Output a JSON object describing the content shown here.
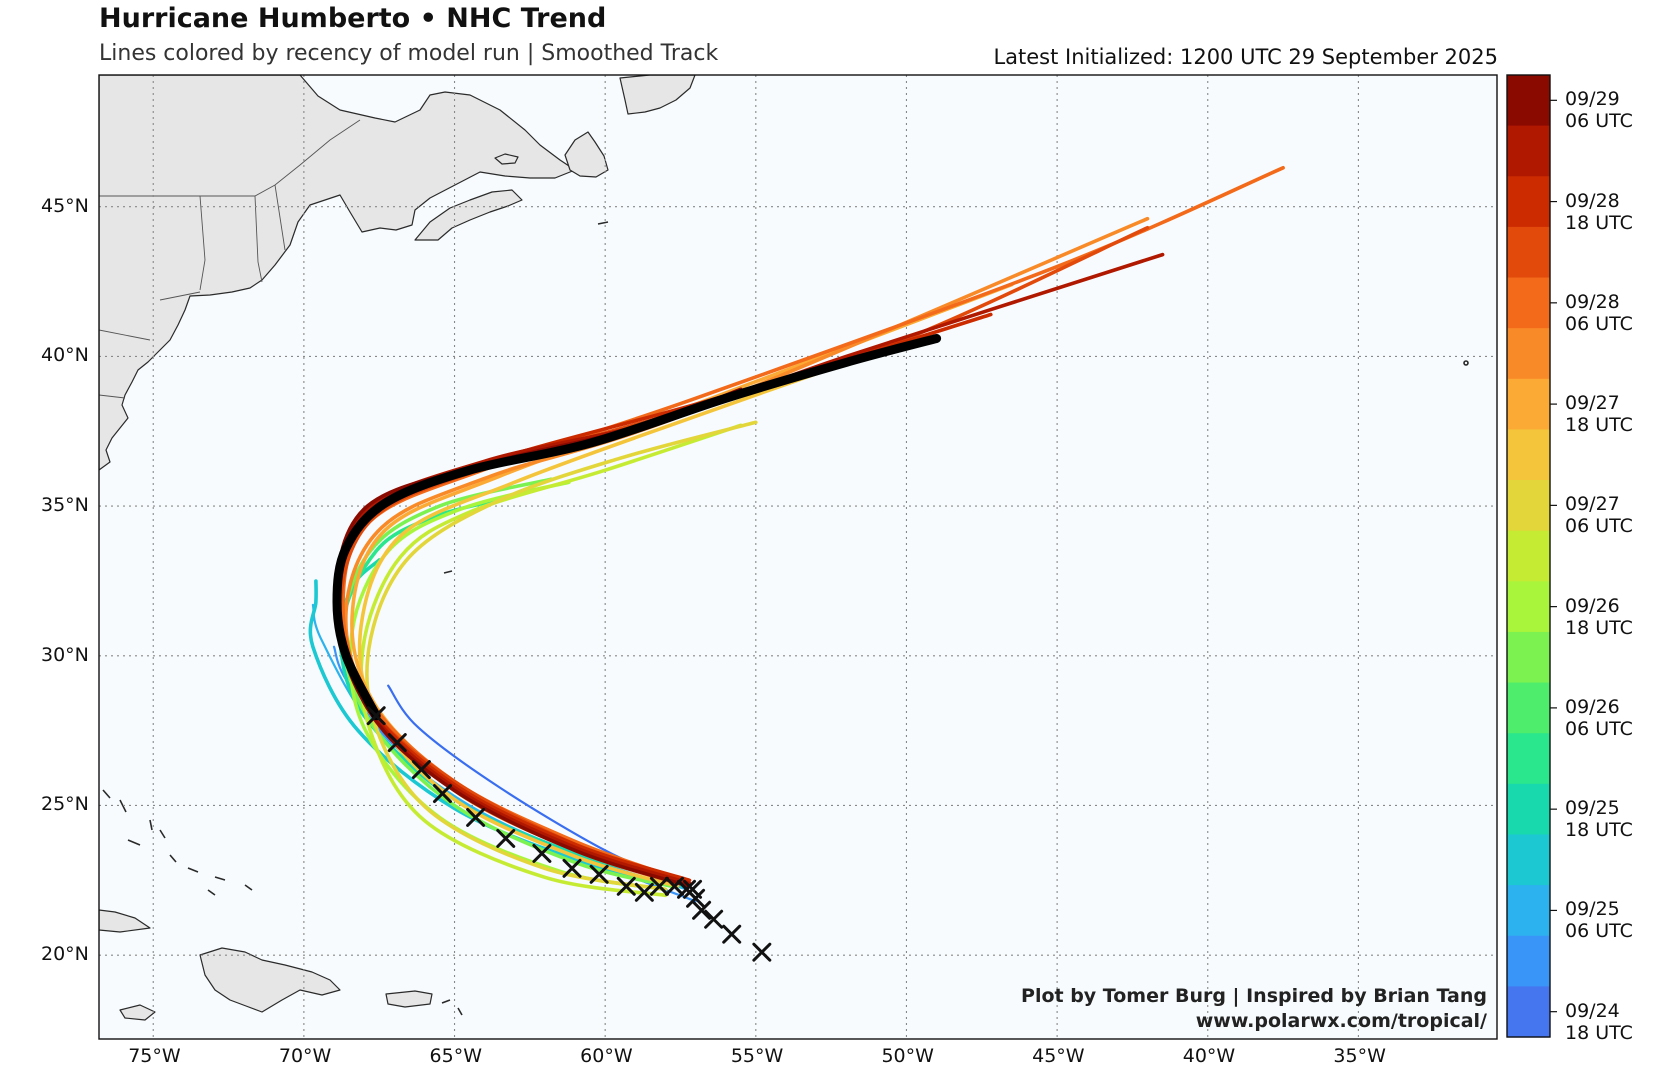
{
  "header": {
    "title": "Hurricane Humberto • NHC Trend",
    "subtitle": "Lines colored by recency of model run | Smoothed Track",
    "latest": "Latest Initialized: 1200 UTC 29 September 2025"
  },
  "credit": {
    "line1": "Plot by Tomer Burg | Inspired by Brian Tang",
    "line2": "www.polarwx.com/tropical/"
  },
  "map": {
    "lon_range": [
      -76.8,
      -30.4
    ],
    "lat_range": [
      17.2,
      49.4
    ],
    "lon_ticks": [
      {
        "value": -75,
        "label": "75°W"
      },
      {
        "value": -70,
        "label": "70°W"
      },
      {
        "value": -65,
        "label": "65°W"
      },
      {
        "value": -60,
        "label": "60°W"
      },
      {
        "value": -55,
        "label": "55°W"
      },
      {
        "value": -50,
        "label": "50°W"
      },
      {
        "value": -45,
        "label": "45°W"
      },
      {
        "value": -40,
        "label": "40°W"
      },
      {
        "value": -35,
        "label": "35°W"
      }
    ],
    "lat_ticks": [
      {
        "value": 20,
        "label": "20°N"
      },
      {
        "value": 25,
        "label": "25°N"
      },
      {
        "value": 30,
        "label": "30°N"
      },
      {
        "value": 35,
        "label": "35°N"
      },
      {
        "value": 40,
        "label": "40°N"
      },
      {
        "value": 45,
        "label": "45°N"
      }
    ],
    "ocean_color": "#f7fbfd",
    "land_color": "#e6e6e6",
    "latest_track_color": "#000000"
  },
  "colorbar": {
    "colors": [
      "#8b0a00",
      "#b11800",
      "#cc2b00",
      "#e24a0c",
      "#f26a1a",
      "#f98a28",
      "#fbab35",
      "#f4c53b",
      "#e2d63a",
      "#c6eb33",
      "#a9f53c",
      "#7cf250",
      "#4eee6c",
      "#2ae68c",
      "#18d9ae",
      "#1cc8d2",
      "#2cb2ef",
      "#3a95f8",
      "#4576f0"
    ],
    "labels": [
      "09/29\n06 UTC",
      "09/28\n18 UTC",
      "09/28\n06 UTC",
      "09/27\n18 UTC",
      "09/27\n06 UTC",
      "09/26\n18 UTC",
      "09/26\n06 UTC",
      "09/25\n18 UTC",
      "09/25\n06 UTC",
      "09/24\n18 UTC"
    ]
  },
  "tracks": [
    {
      "color": "#3a6ef0",
      "points": [
        [
          -57.5,
          22.4
        ],
        [
          -60,
          23.5
        ],
        [
          -63.5,
          25.6
        ],
        [
          -66.2,
          27.6
        ],
        [
          -67.2,
          29.0
        ]
      ]
    },
    {
      "color": "#3a95f8",
      "points": [
        [
          -57.0,
          21.8
        ],
        [
          -60,
          23.0
        ],
        [
          -64,
          25.0
        ],
        [
          -67,
          27.0
        ],
        [
          -68.6,
          29.2
        ],
        [
          -69.0,
          30.3
        ]
      ]
    },
    {
      "color": "#2cb2ef",
      "points": [
        [
          -57.3,
          22.2
        ],
        [
          -60.5,
          23.2
        ],
        [
          -64.5,
          25.0
        ],
        [
          -67.6,
          27.5
        ],
        [
          -69.4,
          30.5
        ],
        [
          -69.7,
          31.7
        ]
      ]
    },
    {
      "color": "#1cc8d2",
      "points": [
        [
          -57.5,
          22.3
        ],
        [
          -61,
          23.2
        ],
        [
          -65,
          24.9
        ],
        [
          -68.2,
          27.5
        ],
        [
          -69.7,
          30.3
        ],
        [
          -69.6,
          31.8
        ],
        [
          -69.6,
          32.5
        ]
      ]
    },
    {
      "color": "#18d9ae",
      "points": [
        [
          -57.6,
          22.5
        ],
        [
          -61,
          23.4
        ],
        [
          -65,
          25.2
        ],
        [
          -68.0,
          28.0
        ],
        [
          -68.8,
          30.5
        ],
        [
          -68.4,
          32.3
        ],
        [
          -67.5,
          33.2
        ]
      ]
    },
    {
      "color": "#2ae68c",
      "points": [
        [
          -57.8,
          22.6
        ],
        [
          -61,
          23.6
        ],
        [
          -64.8,
          25.5
        ],
        [
          -67.8,
          28.2
        ],
        [
          -68.7,
          31.0
        ],
        [
          -67.6,
          33.5
        ],
        [
          -65.8,
          34.6
        ],
        [
          -63.6,
          35.2
        ]
      ]
    },
    {
      "color": "#7cf250",
      "points": [
        [
          -57.8,
          22.3
        ],
        [
          -61,
          23.1
        ],
        [
          -65,
          25.0
        ],
        [
          -67.8,
          27.8
        ],
        [
          -68.7,
          30.8
        ],
        [
          -67.8,
          33.5
        ],
        [
          -65.5,
          35.0
        ],
        [
          -61.8,
          35.9
        ]
      ]
    },
    {
      "color": "#a9f53c",
      "points": [
        [
          -58.0,
          22.2
        ],
        [
          -61.5,
          22.8
        ],
        [
          -65.5,
          24.6
        ],
        [
          -68.0,
          27.6
        ],
        [
          -68.4,
          30.8
        ],
        [
          -67.2,
          33.5
        ],
        [
          -64.8,
          34.9
        ],
        [
          -61.2,
          35.8
        ]
      ]
    },
    {
      "color": "#c6eb33",
      "points": [
        [
          -58.0,
          22.0
        ],
        [
          -62,
          22.6
        ],
        [
          -66,
          24.5
        ],
        [
          -67.8,
          27.5
        ],
        [
          -68.0,
          30.5
        ],
        [
          -66.8,
          33.3
        ],
        [
          -64.5,
          34.8
        ],
        [
          -60.0,
          36.2
        ],
        [
          -55.5,
          37.7
        ]
      ]
    },
    {
      "color": "#e2d63a",
      "points": [
        [
          -58.0,
          22.2
        ],
        [
          -62,
          22.9
        ],
        [
          -65.8,
          24.8
        ],
        [
          -67.6,
          27.6
        ],
        [
          -67.8,
          30.5
        ],
        [
          -66.5,
          33.3
        ],
        [
          -63.5,
          35.2
        ],
        [
          -59.5,
          36.6
        ],
        [
          -55.0,
          37.8
        ]
      ]
    },
    {
      "color": "#f4c53b",
      "points": [
        [
          -57.6,
          22.3
        ],
        [
          -61,
          23.3
        ],
        [
          -65,
          25.2
        ],
        [
          -67.6,
          28.0
        ],
        [
          -68.1,
          31.0
        ],
        [
          -66.8,
          34.0
        ],
        [
          -63.0,
          35.8
        ],
        [
          -57.0,
          38.0
        ],
        [
          -50.5,
          40.3
        ]
      ]
    },
    {
      "color": "#fbab35",
      "points": [
        [
          -57.5,
          22.4
        ],
        [
          -61,
          23.6
        ],
        [
          -64.8,
          25.6
        ],
        [
          -67.6,
          28.3
        ],
        [
          -68.4,
          31.3
        ],
        [
          -67.3,
          34.2
        ],
        [
          -63.5,
          36.0
        ],
        [
          -57.0,
          38.4
        ],
        [
          -46.5,
          42.4
        ]
      ]
    },
    {
      "color": "#f98a28",
      "points": [
        [
          -57.6,
          22.4
        ],
        [
          -61,
          23.5
        ],
        [
          -65,
          25.5
        ],
        [
          -67.8,
          28.4
        ],
        [
          -68.6,
          31.5
        ],
        [
          -67.4,
          34.3
        ],
        [
          -63.8,
          36.0
        ],
        [
          -57.0,
          38.2
        ],
        [
          -42.0,
          44.6
        ]
      ]
    },
    {
      "color": "#f26a1a",
      "points": [
        [
          -57.4,
          22.5
        ],
        [
          -61,
          23.8
        ],
        [
          -65,
          25.8
        ],
        [
          -67.8,
          28.5
        ],
        [
          -68.7,
          31.6
        ],
        [
          -67.8,
          34.5
        ],
        [
          -63.8,
          36.3
        ],
        [
          -57.0,
          38.6
        ],
        [
          -45.0,
          43.0
        ],
        [
          -37.5,
          46.3
        ]
      ]
    },
    {
      "color": "#e24a0c",
      "points": [
        [
          -57.3,
          22.4
        ],
        [
          -61,
          23.7
        ],
        [
          -65,
          25.8
        ],
        [
          -67.9,
          28.4
        ],
        [
          -68.8,
          31.5
        ],
        [
          -67.7,
          34.6
        ],
        [
          -63.6,
          36.4
        ],
        [
          -57.0,
          38.3
        ],
        [
          -50.0,
          40.6
        ],
        [
          -42.0,
          44.3
        ]
      ]
    },
    {
      "color": "#cc2b00",
      "points": [
        [
          -57.2,
          22.5
        ],
        [
          -61,
          23.7
        ],
        [
          -65,
          25.7
        ],
        [
          -67.9,
          28.4
        ],
        [
          -68.9,
          31.6
        ],
        [
          -67.9,
          34.8
        ],
        [
          -63.8,
          36.5
        ],
        [
          -57.0,
          38.4
        ],
        [
          -51.0,
          40.2
        ],
        [
          -47.2,
          41.4
        ]
      ]
    },
    {
      "color": "#b11800",
      "points": [
        [
          -57.2,
          22.4
        ],
        [
          -61,
          23.6
        ],
        [
          -65,
          25.6
        ],
        [
          -67.9,
          28.3
        ],
        [
          -68.9,
          31.6
        ],
        [
          -68.0,
          34.8
        ],
        [
          -64.0,
          36.5
        ],
        [
          -58.0,
          37.9
        ],
        [
          -52.0,
          40.0
        ],
        [
          -41.5,
          43.4
        ]
      ]
    },
    {
      "color": "#8b0a00",
      "points": [
        [
          -57.2,
          22.3
        ],
        [
          -61,
          23.5
        ],
        [
          -65,
          25.5
        ],
        [
          -67.8,
          28.1
        ],
        [
          -68.9,
          31.6
        ],
        [
          -68.0,
          34.9
        ],
        [
          -64.0,
          36.4
        ],
        [
          -59.0,
          37.6
        ],
        [
          -55.5,
          38.9
        ]
      ]
    }
  ],
  "latest_track": [
    [
      -67.6,
      28.0
    ],
    [
      -68.6,
      30.0
    ],
    [
      -68.9,
      31.8
    ],
    [
      -68.6,
      33.6
    ],
    [
      -67.3,
      35.1
    ],
    [
      -64.5,
      36.2
    ],
    [
      -60.5,
      37.1
    ],
    [
      -56.0,
      38.6
    ],
    [
      -52.0,
      39.8
    ],
    [
      -49.0,
      40.6
    ]
  ],
  "past_positions": [
    [
      -54.8,
      20.1
    ],
    [
      -55.8,
      20.7
    ],
    [
      -56.4,
      21.2
    ],
    [
      -56.8,
      21.5
    ],
    [
      -57.0,
      21.9
    ],
    [
      -57.1,
      22.2
    ],
    [
      -57.3,
      22.2
    ],
    [
      -57.7,
      22.3
    ],
    [
      -58.2,
      22.3
    ],
    [
      -58.7,
      22.1
    ],
    [
      -59.3,
      22.3
    ],
    [
      -60.2,
      22.7
    ],
    [
      -61.1,
      22.9
    ],
    [
      -62.1,
      23.4
    ],
    [
      -63.3,
      23.9
    ],
    [
      -64.3,
      24.6
    ],
    [
      -65.4,
      25.4
    ],
    [
      -66.1,
      26.2
    ],
    [
      -66.9,
      27.1
    ],
    [
      -67.6,
      28.0
    ]
  ]
}
